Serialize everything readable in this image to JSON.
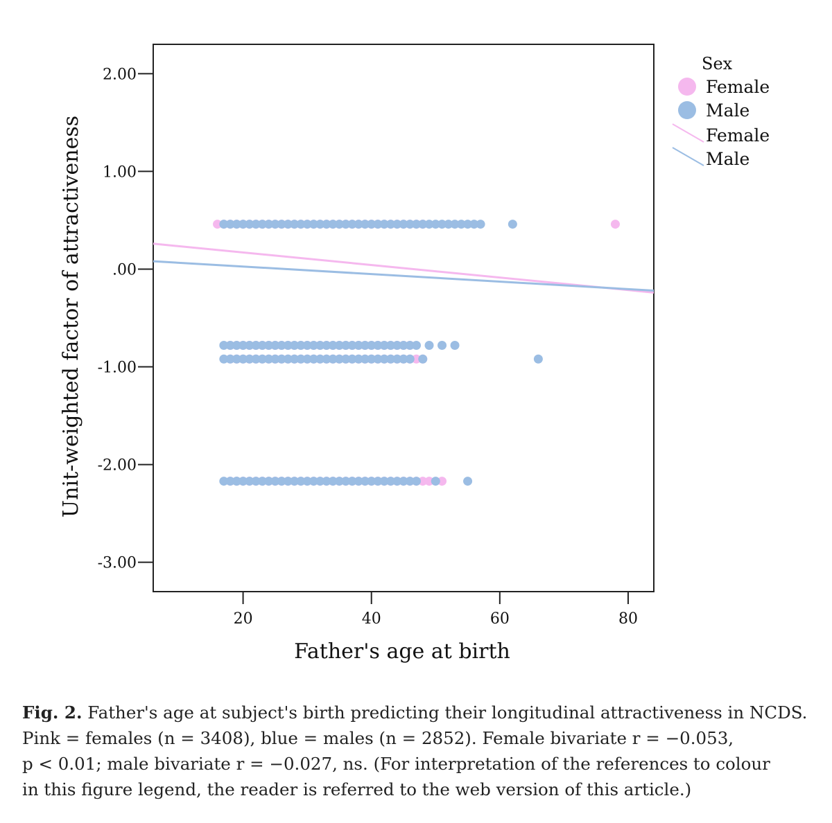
{
  "chart_data": {
    "type": "scatter",
    "title": "",
    "xlabel": "Father's age at birth",
    "ylabel": "Unit-weighted factor of attractiveness",
    "xlim": [
      6,
      84
    ],
    "ylim": [
      -3.3,
      2.3
    ],
    "x_ticks": [
      {
        "value": 20,
        "label": "20"
      },
      {
        "value": 40,
        "label": "40"
      },
      {
        "value": 60,
        "label": "60"
      },
      {
        "value": 80,
        "label": "80"
      }
    ],
    "y_ticks": [
      {
        "value": 2,
        "label": "2.00"
      },
      {
        "value": 1,
        "label": "1.00"
      },
      {
        "value": 0,
        "label": ".00"
      },
      {
        "value": -1,
        "label": "-1.00"
      },
      {
        "value": -2,
        "label": "-2.00"
      },
      {
        "value": -3,
        "label": "-3.00"
      }
    ],
    "legend": {
      "title": "Sex",
      "position": "right",
      "entries": [
        {
          "label": "Female",
          "kind": "marker",
          "color": "#f5b8ee"
        },
        {
          "label": "Male",
          "kind": "marker",
          "color": "#9bbde3"
        },
        {
          "label": "Female",
          "kind": "line",
          "color": "#f5b8ee"
        },
        {
          "label": "Male",
          "kind": "line",
          "color": "#9bbde3"
        }
      ]
    },
    "series": [
      {
        "name": "Female",
        "color": "#f5b8ee",
        "ranges": [
          {
            "y": 0.46,
            "x_from": 16,
            "x_to": 48
          },
          {
            "y": -0.78,
            "x_from": 18,
            "x_to": 46
          },
          {
            "y": -0.92,
            "x_from": 18,
            "x_to": 47
          },
          {
            "y": -2.17,
            "x_from": 18,
            "x_to": 48
          }
        ],
        "points": [
          {
            "x": 48,
            "y": 0.46
          },
          {
            "x": 78,
            "y": 0.46
          },
          {
            "x": 48,
            "y": -0.92
          },
          {
            "x": 49,
            "y": -2.17
          },
          {
            "x": 51,
            "y": -2.17
          }
        ]
      },
      {
        "name": "Male",
        "color": "#9bbde3",
        "ranges": [
          {
            "y": 0.46,
            "x_from": 17,
            "x_to": 55
          },
          {
            "y": -0.78,
            "x_from": 17,
            "x_to": 47
          },
          {
            "y": -0.92,
            "x_from": 17,
            "x_to": 46
          },
          {
            "y": -2.17,
            "x_from": 17,
            "x_to": 47
          }
        ],
        "points": [
          {
            "x": 56,
            "y": 0.46
          },
          {
            "x": 57,
            "y": 0.46
          },
          {
            "x": 62,
            "y": 0.46
          },
          {
            "x": 49,
            "y": -0.78
          },
          {
            "x": 51,
            "y": -0.78
          },
          {
            "x": 53,
            "y": -0.78
          },
          {
            "x": 66,
            "y": -0.92
          },
          {
            "x": 48,
            "y": -0.92
          },
          {
            "x": 19,
            "y": -2.17
          },
          {
            "x": 50,
            "y": -2.17
          },
          {
            "x": 55,
            "y": -2.17
          }
        ]
      }
    ],
    "fit_lines": [
      {
        "name": "Female",
        "color": "#f5b8ee",
        "x": [
          6,
          84
        ],
        "y": [
          0.26,
          -0.24
        ]
      },
      {
        "name": "Male",
        "color": "#9bbde3",
        "x": [
          6,
          84
        ],
        "y": [
          0.08,
          -0.22
        ]
      }
    ]
  },
  "caption": {
    "fig_label": "Fig. 2.",
    "lines": [
      "Father's age at subject's birth predicting their longitudinal attractiveness in NCDS.",
      "Pink = females (n = 3408), blue = males (n = 2852). Female bivariate r = −0.053,",
      "p < 0.01; male bivariate r = −0.027, ns. (For interpretation of the references to colour",
      "in this figure legend, the reader is referred to the web version of this article.)"
    ]
  }
}
